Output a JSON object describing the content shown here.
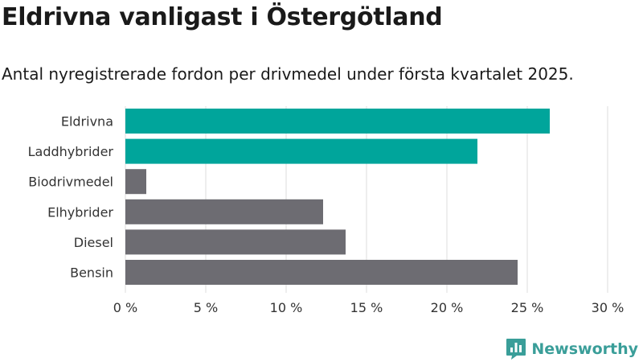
{
  "title": "Eldrivna vanligast i Östergötland",
  "subtitle": "Antal nyregistrerade fordon per drivmedel under första kvartalet 2025.",
  "brand": {
    "name": "Newsworthy",
    "logo_icon": "bar-chart-speech-bubble-icon",
    "color": "#3a9e99"
  },
  "colors": {
    "highlight": "#00a59b",
    "default": "#6d6c72",
    "grid": "#dddddd"
  },
  "chart_data": {
    "type": "bar",
    "orientation": "horizontal",
    "categories": [
      "Eldrivna",
      "Laddhybrider",
      "Biodrivmedel",
      "Elhybrider",
      "Diesel",
      "Bensin"
    ],
    "values": [
      26.4,
      21.9,
      1.3,
      12.3,
      13.7,
      24.4
    ],
    "highlighted": [
      true,
      true,
      false,
      false,
      false,
      false
    ],
    "unit": "%",
    "xlim": [
      0,
      30
    ],
    "xticks": [
      0,
      5,
      10,
      15,
      20,
      25,
      30
    ],
    "xtick_labels": [
      "0 %",
      "5 %",
      "10 %",
      "15 %",
      "20 %",
      "25 %",
      "30 %"
    ],
    "grid": true
  }
}
